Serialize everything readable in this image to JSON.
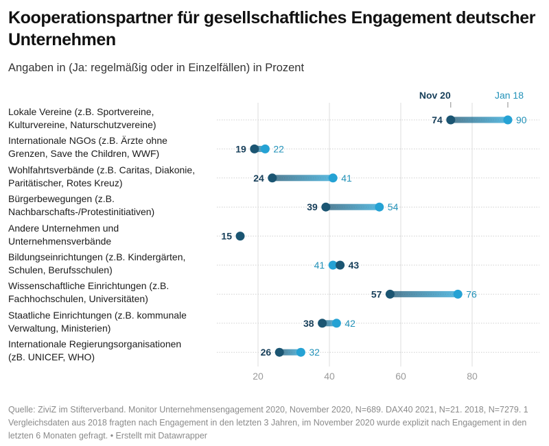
{
  "title": "Kooperationspartner für gesellschaftliches Engagement deutscher Unternehmen",
  "subtitle": "Angaben in (Ja: regelmäßig oder in Einzelfällen) in Prozent",
  "footer": "Quelle: ZiviZ im Stifterverband. Monitor Unternehmensengagement 2020, November 2020, N=689. DAX40 2021, N=21. 2018, N=7279. 1 Vergleichsdaten aus 2018 fragten nach Engagement in den letzten 3 Jahren, im November 2020 wurde explizit nach Engagement in den letzten 6 Monaten gefragt. • Erstellt mit Datawrapper",
  "colors": {
    "nov20": "#1b5572",
    "jan18": "#25a2d4",
    "grid": "#dcdcdc"
  },
  "chart_data": {
    "type": "dot-range",
    "title": "Kooperationspartner für gesellschaftliches Engagement deutscher Unternehmen",
    "subtitle": "Angaben in (Ja: regelmäßig oder in Einzelfällen) in Prozent",
    "xlabel": "",
    "ylabel": "",
    "xlim": [
      0,
      100
    ],
    "xticks": [
      20,
      40,
      60,
      80
    ],
    "grid": true,
    "legend_position": "top-right",
    "series": [
      {
        "name": "Nov 20",
        "values": [
          74,
          19,
          24,
          39,
          15,
          43,
          57,
          38,
          26
        ]
      },
      {
        "name": "Jan 18",
        "values": [
          90,
          22,
          41,
          54,
          null,
          41,
          76,
          42,
          32
        ]
      }
    ],
    "categories": [
      "Lokale Vereine (z.B. Sportvereine, Kulturvereine, Naturschutzvereine)",
      "Internationale NGOs (z.B. Ärzte ohne Grenzen, Save the Children, WWF)",
      "Wohlfahrtsverbände (z.B. Caritas, Diakonie, Paritätischer, Rotes Kreuz)",
      "Bürgerbewegungen (z.B. Nachbarschafts-/Protestinitiativen)",
      "Andere Unternehmen und Unternehmensverbände",
      "Bildungseinrichtungen (z.B. Kindergärten, Schulen, Berufsschulen)",
      "Wissenschaftliche Einrichtungen (z.B. Fachhochschulen, Universitäten)",
      "Staatliche Einrichtungen (z.B. kommunale Verwaltung, Ministerien)",
      "Internationale Regierungsorganisationen (zB. UNICEF, WHO)"
    ],
    "category_lines": [
      [
        "Lokale Vereine (z.B. Sportvereine,",
        "Kulturvereine, Naturschutzvereine)"
      ],
      [
        "Internationale NGOs (z.B. Ärzte ohne",
        "Grenzen, Save the Children, WWF)"
      ],
      [
        "Wohlfahrtsverbände (z.B. Caritas, Diakonie,",
        "Paritätischer, Rotes Kreuz)"
      ],
      [
        "Bürgerbewegungen (z.B.",
        "Nachbarschafts-/Protestinitiativen)"
      ],
      [
        "Andere Unternehmen und",
        "Unternehmensverbände"
      ],
      [
        "Bildungseinrichtungen (z.B. Kindergärten,",
        "Schulen, Berufsschulen)"
      ],
      [
        "Wissenschaftliche Einrichtungen (z.B.",
        "Fachhochschulen, Universitäten)"
      ],
      [
        "Staatliche Einrichtungen (z.B. kommunale",
        "Verwaltung, Ministerien)"
      ],
      [
        "Internationale Regierungsorganisationen",
        "(zB. UNICEF, WHO)"
      ]
    ]
  }
}
